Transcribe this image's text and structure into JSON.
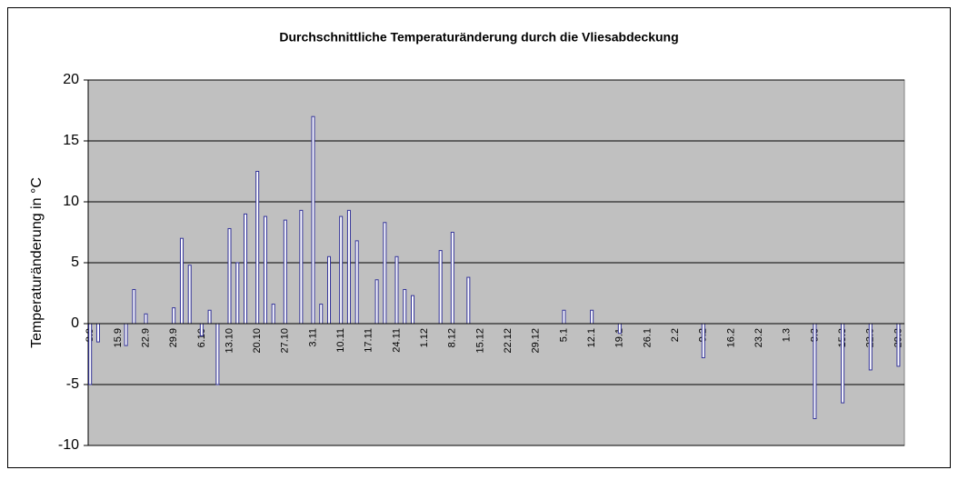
{
  "chart_data": {
    "type": "bar",
    "title": "Durchschnittliche Temperaturänderung durch die Vliesabdeckung",
    "y_label": "Temperaturänderung in °C",
    "categories": [
      "8.9",
      null,
      null,
      null,
      null,
      null,
      null,
      "15.9",
      null,
      null,
      null,
      null,
      null,
      null,
      "22.9",
      null,
      null,
      null,
      null,
      null,
      null,
      "29.9",
      null,
      null,
      null,
      null,
      null,
      null,
      "6.10",
      null,
      null,
      null,
      null,
      null,
      null,
      "13.10",
      null,
      null,
      null,
      null,
      null,
      null,
      "20.10",
      null,
      null,
      null,
      null,
      null,
      null,
      "27.10",
      null,
      null,
      null,
      null,
      null,
      null,
      "3.11",
      null,
      null,
      null,
      null,
      null,
      null,
      "10.11",
      null,
      null,
      null,
      null,
      null,
      null,
      "17.11",
      null,
      null,
      null,
      null,
      null,
      null,
      "24.11",
      null,
      null,
      null,
      null,
      null,
      null,
      "1.12",
      null,
      null,
      null,
      null,
      null,
      null,
      "8.12",
      null,
      null,
      null,
      null,
      null,
      null,
      "15.12",
      null,
      null,
      null,
      null,
      null,
      null,
      "22.12",
      null,
      null,
      null,
      null,
      null,
      null,
      "29.12",
      null,
      null,
      null,
      null,
      null,
      null,
      "5.1",
      null,
      null,
      null,
      null,
      null,
      null,
      "12.1",
      null,
      null,
      null,
      null,
      null,
      null,
      "19.1",
      null,
      null,
      null,
      null,
      null,
      null,
      "26.1",
      null,
      null,
      null,
      null,
      null,
      null,
      "2.2",
      null,
      null,
      null,
      null,
      null,
      null,
      "9.2",
      null,
      null,
      null,
      null,
      null,
      null,
      "16.2",
      null,
      null,
      null,
      null,
      null,
      null,
      "23.2",
      null,
      null,
      null,
      null,
      null,
      null,
      "1.3",
      null,
      null,
      null,
      null,
      null,
      null,
      "8.3",
      null,
      null,
      null,
      null,
      null,
      null,
      "15.3",
      null,
      null,
      null,
      null,
      null,
      null,
      "22.3",
      null,
      null,
      null,
      null,
      null,
      null,
      "29.3",
      null
    ],
    "values": [
      -5,
      null,
      -1.5,
      null,
      null,
      null,
      null,
      null,
      null,
      -1.8,
      null,
      2.8,
      null,
      null,
      0.8,
      null,
      null,
      null,
      null,
      null,
      null,
      1.3,
      null,
      7,
      null,
      4.8,
      null,
      null,
      -1,
      null,
      1.1,
      null,
      -5,
      null,
      null,
      7.8,
      null,
      5,
      null,
      9,
      null,
      null,
      12.5,
      null,
      8.8,
      null,
      1.6,
      null,
      null,
      8.5,
      null,
      null,
      null,
      9.3,
      null,
      null,
      17,
      null,
      1.6,
      null,
      5.5,
      null,
      null,
      8.8,
      null,
      9.3,
      null,
      6.8,
      null,
      null,
      null,
      null,
      3.6,
      null,
      8.3,
      null,
      null,
      5.5,
      null,
      2.8,
      null,
      2.3,
      null,
      null,
      null,
      null,
      null,
      null,
      6,
      null,
      null,
      7.5,
      null,
      null,
      null,
      3.8,
      null,
      null,
      null,
      null,
      null,
      null,
      null,
      null,
      null,
      null,
      null,
      null,
      null,
      null,
      null,
      null,
      null,
      null,
      null,
      null,
      null,
      null,
      null,
      1.1,
      null,
      null,
      null,
      null,
      null,
      null,
      1.1,
      null,
      null,
      null,
      null,
      null,
      null,
      -0.8,
      null,
      null,
      null,
      null,
      null,
      null,
      null,
      null,
      null,
      null,
      null,
      null,
      null,
      null,
      null,
      null,
      null,
      null,
      null,
      null,
      -2.8,
      null,
      null,
      null,
      null,
      null,
      null,
      null,
      null,
      null,
      null,
      null,
      null,
      null,
      null,
      null,
      null,
      null,
      null,
      null,
      null,
      null,
      null,
      null,
      null,
      null,
      null,
      null,
      -7.8,
      null,
      null,
      null,
      null,
      null,
      null,
      -6.5,
      null,
      null,
      null,
      null,
      null,
      null,
      -3.8,
      null,
      null,
      null,
      null,
      null,
      null,
      -3.5,
      null
    ],
    "color": "#333399",
    "fill": "#ffffff",
    "plot_background": "#c0c0c0",
    "ylim": [
      -10,
      20
    ],
    "yticks": [
      -10,
      -5,
      0,
      5,
      10,
      15,
      20
    ],
    "grid": true
  }
}
